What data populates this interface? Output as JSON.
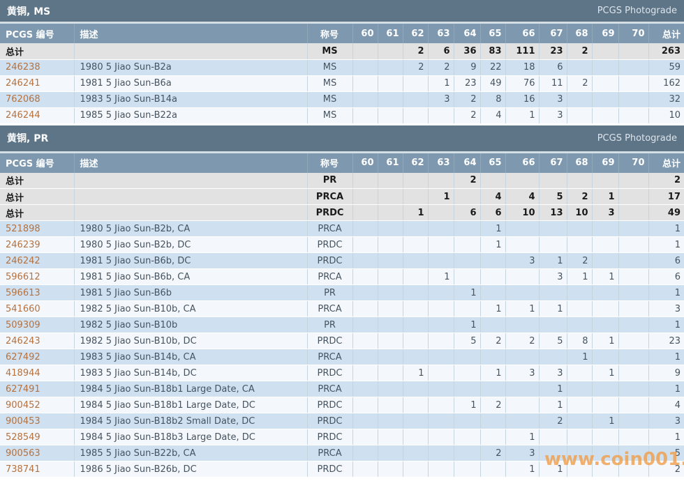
{
  "watermark": "www.coin001.com",
  "colors": {
    "section_header_bg": "#5e7487",
    "table_header_bg": "#7e99af",
    "total_row_bg": "#e2e2e2",
    "row_blue": "#cfe1f1",
    "row_light": "#f4f8fc",
    "pcgs_number_link": "#b5713e",
    "watermark_orange": "#f09d48"
  },
  "columns": [
    "PCGS 编号",
    "描述",
    "称号",
    "60",
    "61",
    "62",
    "63",
    "64",
    "65",
    "66",
    "67",
    "68",
    "69",
    "70",
    "总计"
  ],
  "sections": [
    {
      "title": "黄铜, MS",
      "photograde_label": "PCGS Photograde",
      "rows": [
        {
          "type": "total",
          "label": "总计",
          "description": "",
          "designation": "MS",
          "grades": [
            "",
            "",
            "2",
            "6",
            "36",
            "83",
            "111",
            "23",
            "2",
            "",
            ""
          ],
          "total": "263"
        },
        {
          "type": "data",
          "pcgs_number": "246238",
          "description": "1980 5 Jiao Sun-B2a",
          "designation": "MS",
          "grades": [
            "",
            "",
            "2",
            "2",
            "9",
            "22",
            "18",
            "6",
            "",
            "",
            ""
          ],
          "total": "59"
        },
        {
          "type": "data",
          "pcgs_number": "246241",
          "description": "1981 5 Jiao Sun-B6a",
          "designation": "MS",
          "grades": [
            "",
            "",
            "",
            "1",
            "23",
            "49",
            "76",
            "11",
            "2",
            "",
            ""
          ],
          "total": "162"
        },
        {
          "type": "data",
          "pcgs_number": "762068",
          "description": "1983 5 Jiao Sun-B14a",
          "designation": "MS",
          "grades": [
            "",
            "",
            "",
            "3",
            "2",
            "8",
            "16",
            "3",
            "",
            "",
            ""
          ],
          "total": "32"
        },
        {
          "type": "data",
          "pcgs_number": "246244",
          "description": "1985 5 Jiao Sun-B22a",
          "designation": "MS",
          "grades": [
            "",
            "",
            "",
            "",
            "2",
            "4",
            "1",
            "3",
            "",
            "",
            ""
          ],
          "total": "10"
        }
      ]
    },
    {
      "title": "黄铜, PR",
      "photograde_label": "PCGS Photograde",
      "rows": [
        {
          "type": "total",
          "label": "总计",
          "description": "",
          "designation": "PR",
          "grades": [
            "",
            "",
            "",
            "",
            "2",
            "",
            "",
            "",
            "",
            "",
            ""
          ],
          "total": "2"
        },
        {
          "type": "total",
          "label": "总计",
          "description": "",
          "designation": "PRCA",
          "grades": [
            "",
            "",
            "",
            "1",
            "",
            "4",
            "4",
            "5",
            "2",
            "1",
            ""
          ],
          "total": "17"
        },
        {
          "type": "total",
          "label": "总计",
          "description": "",
          "designation": "PRDC",
          "grades": [
            "",
            "",
            "1",
            "",
            "6",
            "6",
            "10",
            "13",
            "10",
            "3",
            ""
          ],
          "total": "49"
        },
        {
          "type": "data",
          "pcgs_number": "521898",
          "description": "1980 5 Jiao Sun-B2b, CA",
          "designation": "PRCA",
          "grades": [
            "",
            "",
            "",
            "",
            "",
            "1",
            "",
            "",
            "",
            "",
            ""
          ],
          "total": "1"
        },
        {
          "type": "data",
          "pcgs_number": "246239",
          "description": "1980 5 Jiao Sun-B2b, DC",
          "designation": "PRDC",
          "grades": [
            "",
            "",
            "",
            "",
            "",
            "1",
            "",
            "",
            "",
            "",
            ""
          ],
          "total": "1"
        },
        {
          "type": "data",
          "pcgs_number": "246242",
          "description": "1981 5 Jiao Sun-B6b, DC",
          "designation": "PRDC",
          "grades": [
            "",
            "",
            "",
            "",
            "",
            "",
            "3",
            "1",
            "2",
            "",
            ""
          ],
          "total": "6"
        },
        {
          "type": "data",
          "pcgs_number": "596612",
          "description": "1981 5 Jiao Sun-B6b, CA",
          "designation": "PRCA",
          "grades": [
            "",
            "",
            "",
            "1",
            "",
            "",
            "",
            "3",
            "1",
            "1",
            ""
          ],
          "total": "6"
        },
        {
          "type": "data",
          "pcgs_number": "596613",
          "description": "1981 5 Jiao Sun-B6b",
          "designation": "PR",
          "grades": [
            "",
            "",
            "",
            "",
            "1",
            "",
            "",
            "",
            "",
            "",
            ""
          ],
          "total": "1"
        },
        {
          "type": "data",
          "pcgs_number": "541660",
          "description": "1982 5 Jiao Sun-B10b, CA",
          "designation": "PRCA",
          "grades": [
            "",
            "",
            "",
            "",
            "",
            "1",
            "1",
            "1",
            "",
            "",
            ""
          ],
          "total": "3"
        },
        {
          "type": "data",
          "pcgs_number": "509309",
          "description": "1982 5 Jiao Sun-B10b",
          "designation": "PR",
          "grades": [
            "",
            "",
            "",
            "",
            "1",
            "",
            "",
            "",
            "",
            "",
            ""
          ],
          "total": "1"
        },
        {
          "type": "data",
          "pcgs_number": "246243",
          "description": "1982 5 Jiao Sun-B10b, DC",
          "designation": "PRDC",
          "grades": [
            "",
            "",
            "",
            "",
            "5",
            "2",
            "2",
            "5",
            "8",
            "1",
            ""
          ],
          "total": "23"
        },
        {
          "type": "data",
          "pcgs_number": "627492",
          "description": "1983 5 Jiao Sun-B14b, CA",
          "designation": "PRCA",
          "grades": [
            "",
            "",
            "",
            "",
            "",
            "",
            "",
            "",
            "1",
            "",
            ""
          ],
          "total": "1"
        },
        {
          "type": "data",
          "pcgs_number": "418944",
          "description": "1983 5 Jiao Sun-B14b, DC",
          "designation": "PRDC",
          "grades": [
            "",
            "",
            "1",
            "",
            "",
            "1",
            "3",
            "3",
            "",
            "1",
            ""
          ],
          "total": "9"
        },
        {
          "type": "data",
          "pcgs_number": "627491",
          "description": "1984 5 Jiao Sun-B18b1 Large Date, CA",
          "designation": "PRCA",
          "grades": [
            "",
            "",
            "",
            "",
            "",
            "",
            "",
            "1",
            "",
            "",
            ""
          ],
          "total": "1"
        },
        {
          "type": "data",
          "pcgs_number": "900452",
          "description": "1984 5 Jiao Sun-B18b1 Large Date, DC",
          "designation": "PRDC",
          "grades": [
            "",
            "",
            "",
            "",
            "1",
            "2",
            "",
            "1",
            "",
            "",
            ""
          ],
          "total": "4"
        },
        {
          "type": "data",
          "pcgs_number": "900453",
          "description": "1984 5 Jiao Sun-B18b2 Small Date, DC",
          "designation": "PRDC",
          "grades": [
            "",
            "",
            "",
            "",
            "",
            "",
            "",
            "2",
            "",
            "1",
            ""
          ],
          "total": "3"
        },
        {
          "type": "data",
          "pcgs_number": "528549",
          "description": "1984 5 Jiao Sun-B18b3 Large Date, DC",
          "designation": "PRDC",
          "grades": [
            "",
            "",
            "",
            "",
            "",
            "",
            "1",
            "",
            "",
            "",
            ""
          ],
          "total": "1"
        },
        {
          "type": "data",
          "pcgs_number": "900563",
          "description": "1985 5 Jiao Sun-B22b, CA",
          "designation": "PRCA",
          "grades": [
            "",
            "",
            "",
            "",
            "",
            "2",
            "3",
            "",
            "",
            "",
            ""
          ],
          "total": "5"
        },
        {
          "type": "data",
          "pcgs_number": "738741",
          "description": "1986 5 Jiao Sun-B26b, DC",
          "designation": "PRDC",
          "grades": [
            "",
            "",
            "",
            "",
            "",
            "",
            "1",
            "1",
            "",
            "",
            ""
          ],
          "total": "2"
        }
      ]
    }
  ]
}
